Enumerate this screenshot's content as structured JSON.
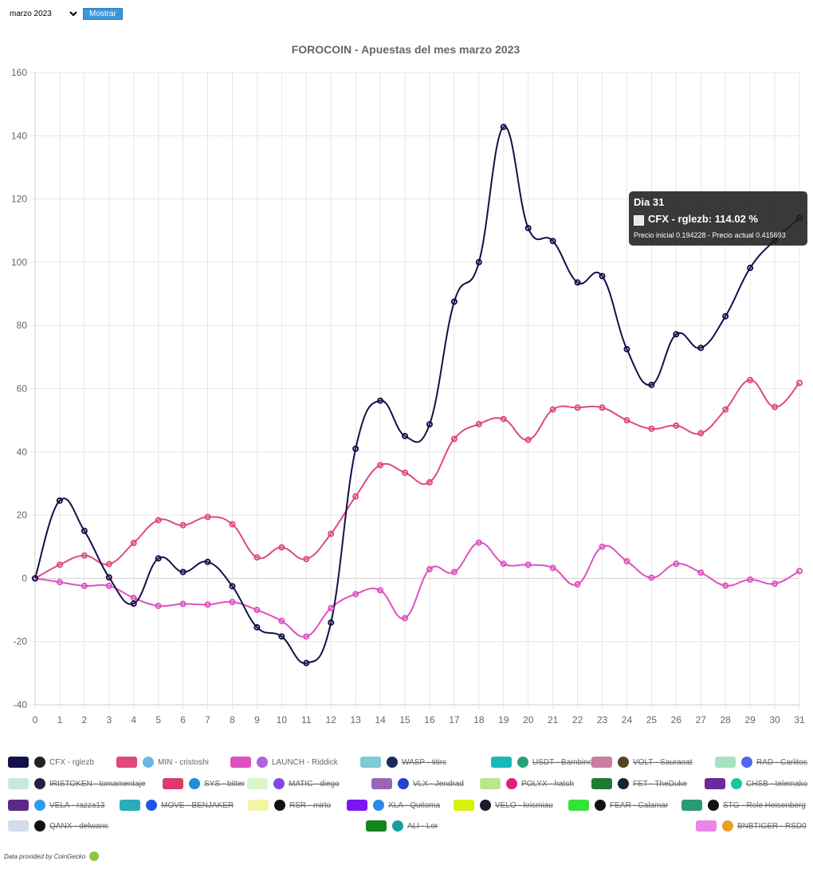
{
  "controls": {
    "month_value": "marzo 2023",
    "button_label": "Mostrar"
  },
  "tooltip": {
    "title": "Dia 31",
    "line": "CFX - rglezb: 114.02 %",
    "footer": "Precio inicial 0.194228 - Precio actual 0.415693"
  },
  "credit": "Data provided by CoinGecko",
  "chart_data": {
    "type": "line",
    "title": "FOROCOIN - Apuestas del mes marzo 2023",
    "xlabel": "",
    "ylabel": "",
    "x": [
      0,
      1,
      2,
      3,
      4,
      5,
      6,
      7,
      8,
      9,
      10,
      11,
      12,
      13,
      14,
      15,
      16,
      17,
      18,
      19,
      20,
      21,
      22,
      23,
      24,
      25,
      26,
      27,
      28,
      29,
      30,
      31
    ],
    "ylim": [
      -40,
      160
    ],
    "yticks": [
      -40,
      -20,
      0,
      20,
      40,
      60,
      80,
      100,
      120,
      140,
      160
    ],
    "grid": true,
    "legend_position": "bottom",
    "series": [
      {
        "name": "CFX - rglezb",
        "color": "#14104a",
        "values": [
          0,
          24.6,
          15,
          0.3,
          -8,
          6.3,
          2,
          5.2,
          -2.5,
          -15.5,
          -18.4,
          -26.8,
          -14,
          41,
          56.2,
          45,
          48.7,
          87.5,
          100,
          142.8,
          110.8,
          106.7,
          93.6,
          95.6,
          72.5,
          61.2,
          77.2,
          72.9,
          82.9,
          98.2,
          107,
          114.02
        ]
      },
      {
        "name": "MIN - cristoshi",
        "color": "#e0497a",
        "values": [
          0,
          4.3,
          7.2,
          4.5,
          11.2,
          18.4,
          16.8,
          19.4,
          17.1,
          6.6,
          9.8,
          6.1,
          14.1,
          25.9,
          35.8,
          33.4,
          30.4,
          44.1,
          48.8,
          50.4,
          43.8,
          53.4,
          54,
          54,
          50,
          47.3,
          48.3,
          45.9,
          53.4,
          62.7,
          54.2,
          61.8
        ]
      },
      {
        "name": "LAUNCH - Riddick",
        "color": "#e050c0",
        "values": [
          0,
          -1.2,
          -2.4,
          -2.4,
          -6.2,
          -8.7,
          -8.1,
          -8.3,
          -7.5,
          -10,
          -13.5,
          -18.4,
          -9.4,
          -5,
          -3.8,
          -12.6,
          2.9,
          2,
          11.3,
          4.6,
          4.3,
          3.3,
          -1.9,
          10,
          5.4,
          0.2,
          4.6,
          1.8,
          -2.3,
          -0.4,
          -1.7,
          2.3
        ]
      }
    ],
    "legend": [
      {
        "label": "CFX - rglezb",
        "color": "#14104a",
        "icon": "cfx-icon",
        "icon_color": "#222222",
        "hidden": false
      },
      {
        "label": "MIN - cristoshi",
        "color": "#e0497a",
        "icon": "min-icon",
        "icon_color": "#6cb4e8",
        "hidden": false
      },
      {
        "label": "LAUNCH - Riddick",
        "color": "#e050c0",
        "icon": "launch-icon",
        "icon_color": "#b060e0",
        "hidden": false
      },
      {
        "label": "WASP - titirs",
        "color": "#7ecad6",
        "icon": "wasp-icon",
        "icon_color": "#1a2a5a",
        "hidden": true
      },
      {
        "label": "USDT - Bambino",
        "color": "#19b9b9",
        "icon": "usdt-icon",
        "icon_color": "#26a17b",
        "hidden": true
      },
      {
        "label": "VOLT - Sauraoat",
        "color": "#c97fa0",
        "icon": "volt-icon",
        "icon_color": "#554422",
        "hidden": true
      },
      {
        "label": "RAD - Carlitos",
        "color": "#a8e2c2",
        "icon": "rad-icon",
        "icon_color": "#5566ee",
        "hidden": true
      },
      {
        "label": "IRISTOKEN - tomamentaje",
        "color": "#c8e8dc",
        "icon": "iris-icon",
        "icon_color": "#222244",
        "hidden": true
      },
      {
        "label": "SYS - bitter",
        "color": "#dc3c6a",
        "icon": "sys-icon",
        "icon_color": "#1e8ed8",
        "hidden": true
      },
      {
        "label": "MATIC - diego",
        "color": "#daf8c6",
        "icon": "matic-icon",
        "icon_color": "#8247e5",
        "hidden": true
      },
      {
        "label": "VLX - Jendrad",
        "color": "#9a64b8",
        "icon": "vlx-icon",
        "icon_color": "#2244cc",
        "hidden": true
      },
      {
        "label": "POLYX - hatch",
        "color": "#bce68c",
        "icon": "polyx-icon",
        "icon_color": "#e0207a",
        "hidden": true
      },
      {
        "label": "FET - TheDuke",
        "color": "#1f7a34",
        "icon": "fet-icon",
        "icon_color": "#1a2438",
        "hidden": true
      },
      {
        "label": "CHSB - telemako",
        "color": "#6a2a98",
        "icon": "chsb-icon",
        "icon_color": "#14c8a0",
        "hidden": true
      },
      {
        "label": "VELA - razza13",
        "color": "#5a2a88",
        "icon": "vela-icon",
        "icon_color": "#2f9ef0",
        "hidden": true
      },
      {
        "label": "MOVE - BENJAKER",
        "color": "#2aacbc",
        "icon": "move-icon",
        "icon_color": "#2255dd",
        "hidden": true
      },
      {
        "label": "RSR - mirto",
        "color": "#f4f4a6",
        "icon": "rsr-icon",
        "icon_color": "#111111",
        "hidden": true
      },
      {
        "label": "XLA - Quitoma",
        "color": "#7b16f2",
        "icon": "xla-icon",
        "icon_color": "#2a8ae8",
        "hidden": true
      },
      {
        "label": "VELO - krismiau",
        "color": "#d8f20c",
        "icon": "velo-icon",
        "icon_color": "#1a1a2a",
        "hidden": true
      },
      {
        "label": "FEAR - Calamar",
        "color": "#34e23a",
        "icon": "fear-icon",
        "icon_color": "#111111",
        "hidden": true
      },
      {
        "label": "STG - Role Heisenberg",
        "color": "#2a9a76",
        "icon": "stg-icon",
        "icon_color": "#111111",
        "hidden": true
      },
      {
        "label": "QANX - delwans",
        "color": "#d2dcec",
        "icon": "qanx-icon",
        "icon_color": "#111111",
        "hidden": true
      },
      {
        "label": "ALI - Lor",
        "color": "#14861c",
        "icon": "ali-icon",
        "icon_color": "#18a0a0",
        "hidden": true
      },
      {
        "label": "BNBTIGER - RSD0",
        "color": "#ea86ea",
        "icon": "bnbtiger-icon",
        "icon_color": "#e8a020",
        "hidden": true
      }
    ]
  }
}
